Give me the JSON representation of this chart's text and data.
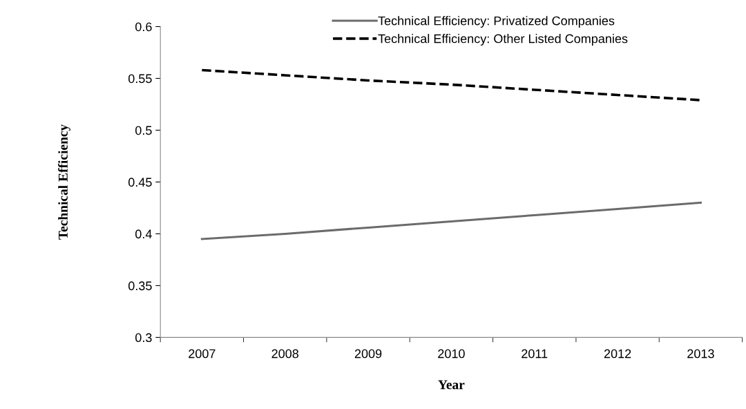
{
  "chart_data": {
    "type": "line",
    "xlabel": "Year",
    "ylabel": "Technical Efficiency",
    "categories": [
      "2007",
      "2008",
      "2009",
      "2010",
      "2011",
      "2012",
      "2013"
    ],
    "series": [
      {
        "name": "Technical Efficiency: Privatized Companies",
        "color": "#6b6b6b",
        "line_style": "solid",
        "values": [
          0.395,
          0.4,
          0.406,
          0.412,
          0.418,
          0.424,
          0.43
        ]
      },
      {
        "name": "Technical Efficiency: Other Listed Companies",
        "color": "#000000",
        "line_style": "dashed",
        "values": [
          0.558,
          0.553,
          0.548,
          0.544,
          0.539,
          0.534,
          0.529
        ]
      }
    ],
    "ylim": [
      0.3,
      0.6
    ],
    "yticks": [
      0.3,
      0.35,
      0.4,
      0.45,
      0.5,
      0.55,
      0.6
    ],
    "grid": false,
    "legend": "top",
    "marker": "none"
  }
}
